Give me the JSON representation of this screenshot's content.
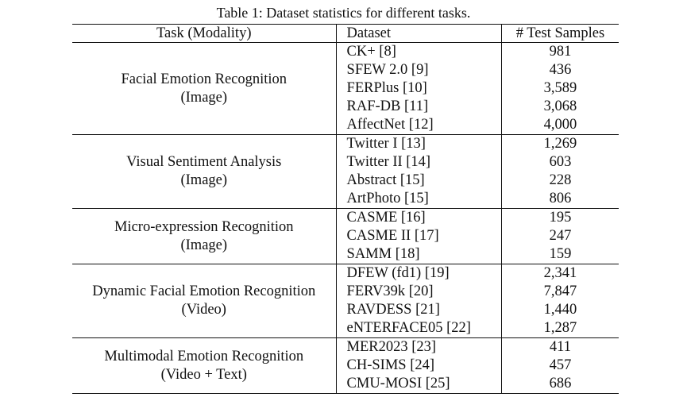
{
  "caption": "Table 1: Dataset statistics for different tasks.",
  "headers": {
    "task": "Task (Modality)",
    "dataset": "Dataset",
    "samples": "# Test Samples"
  },
  "groups": [
    {
      "task": "Facial Emotion Recognition",
      "modality": "(Image)",
      "rows": [
        {
          "dataset": "CK+ [8]",
          "samples": "981"
        },
        {
          "dataset": "SFEW 2.0 [9]",
          "samples": "436"
        },
        {
          "dataset": "FERPlus [10]",
          "samples": "3,589"
        },
        {
          "dataset": "RAF-DB [11]",
          "samples": "3,068"
        },
        {
          "dataset": "AffectNet [12]",
          "samples": "4,000"
        }
      ]
    },
    {
      "task": "Visual Sentiment Analysis",
      "modality": "(Image)",
      "rows": [
        {
          "dataset": "Twitter I [13]",
          "samples": "1,269"
        },
        {
          "dataset": "Twitter II [14]",
          "samples": "603"
        },
        {
          "dataset": "Abstract [15]",
          "samples": "228"
        },
        {
          "dataset": "ArtPhoto [15]",
          "samples": "806"
        }
      ]
    },
    {
      "task": "Micro-expression Recognition",
      "modality": "(Image)",
      "rows": [
        {
          "dataset": "CASME [16]",
          "samples": "195"
        },
        {
          "dataset": "CASME II [17]",
          "samples": "247"
        },
        {
          "dataset": "SAMM [18]",
          "samples": "159"
        }
      ]
    },
    {
      "task": "Dynamic Facial Emotion Recognition",
      "modality": "(Video)",
      "rows": [
        {
          "dataset": "DFEW (fd1) [19]",
          "samples": "2,341"
        },
        {
          "dataset": "FERV39k [20]",
          "samples": "7,847"
        },
        {
          "dataset": "RAVDESS [21]",
          "samples": "1,440"
        },
        {
          "dataset": "eNTERFACE05 [22]",
          "samples": "1,287"
        }
      ]
    },
    {
      "task": "Multimodal Emotion Recognition",
      "modality": "(Video + Text)",
      "rows": [
        {
          "dataset": "MER2023 [23]",
          "samples": "411"
        },
        {
          "dataset": "CH-SIMS [24]",
          "samples": "457"
        },
        {
          "dataset": "CMU-MOSI [25]",
          "samples": "686"
        }
      ]
    }
  ]
}
